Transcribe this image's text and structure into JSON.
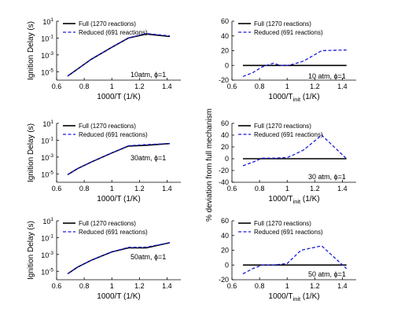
{
  "chart_data": [
    {
      "type": "line",
      "panel": "left-top",
      "ylabel": "Ignition Delay (s)",
      "xlabel": "1000/T (1/K)",
      "annotation": "10atm, ϕ=1",
      "yscale": "log",
      "xlim": [
        0.6,
        1.5
      ],
      "ylim": [
        -6,
        1
      ],
      "xticks": [
        "0.6",
        "0.8",
        "1",
        "1.2",
        "1.4"
      ],
      "yticks": [
        {
          "base": "10",
          "exp": "1",
          "v": 1
        },
        {
          "base": "10",
          "exp": "-1",
          "v": -1
        },
        {
          "base": "10",
          "exp": "-3",
          "v": -3
        },
        {
          "base": "10",
          "exp": "-5",
          "v": -5
        }
      ],
      "legend": "top-left",
      "series": [
        {
          "name": "Full (1270 reactions)",
          "color": "#000000",
          "style": "solid",
          "x": [
            0.68,
            0.75,
            0.85,
            1.0,
            1.12,
            1.25,
            1.42
          ],
          "y": [
            "3e-6",
            "2e-5",
            "3e-4",
            "8e-3",
            "0.1",
            "0.3",
            "0.15"
          ]
        },
        {
          "name": "Reduced (691 reactions)",
          "color": "#1a1adb",
          "style": "dashed",
          "x": [
            0.68,
            0.75,
            0.85,
            1.0,
            1.12,
            1.25,
            1.42
          ],
          "y": [
            "3e-6",
            "2e-5",
            "3e-4",
            "8e-3",
            "0.1",
            "0.35",
            "0.18"
          ]
        }
      ]
    },
    {
      "type": "line",
      "panel": "right-top",
      "xlabel_main": "1000/T",
      "xlabel_sub": "init",
      "xlabel_unit": " (1/K)",
      "annotation": "10 atm, ϕ=1",
      "xlim": [
        0.6,
        1.5
      ],
      "ylim": [
        -20,
        60
      ],
      "xticks": [
        "0.6",
        "0.8",
        "1",
        "1.2",
        "1.4"
      ],
      "yticks": [
        60,
        40,
        20,
        0,
        -20
      ],
      "legend": "top-left",
      "series": [
        {
          "name": "Full (1270 reactions)",
          "color": "#000000",
          "style": "solid",
          "x": [
            0.68,
            1.43
          ],
          "y": [
            0,
            0
          ]
        },
        {
          "name": "Reduced (691 reactions)",
          "color": "#1a1adb",
          "style": "dashed",
          "x": [
            0.68,
            0.75,
            0.82,
            0.9,
            0.95,
            1.0,
            1.05,
            1.12,
            1.25,
            1.43
          ],
          "y": [
            -15,
            -10,
            -2,
            3,
            0,
            0,
            2,
            6,
            20,
            21
          ]
        }
      ]
    },
    {
      "type": "line",
      "panel": "left-middle",
      "ylabel": "Ignition Delay (s)",
      "xlabel": "1000/T (1/K)",
      "annotation": "30atm, ϕ=1",
      "yscale": "log",
      "xlim": [
        0.6,
        1.5
      ],
      "ylim": [
        -6,
        1
      ],
      "xticks": [
        "0.6",
        "0.8",
        "1",
        "1.2",
        "1.4"
      ],
      "yticks": [
        {
          "base": "10",
          "exp": "1",
          "v": 1
        },
        {
          "base": "10",
          "exp": "-1",
          "v": -1
        },
        {
          "base": "10",
          "exp": "-3",
          "v": -3
        },
        {
          "base": "10",
          "exp": "-5",
          "v": -5
        }
      ],
      "legend": "top-left",
      "series": [
        {
          "name": "Full (1270 reactions)",
          "color": "#000000",
          "style": "solid",
          "x": [
            0.68,
            0.75,
            0.85,
            1.0,
            1.12,
            1.25,
            1.42
          ],
          "y": [
            "8e-6",
            "4e-5",
            "2.5e-4",
            "3e-3",
            "0.02",
            "0.025",
            "0.04"
          ]
        },
        {
          "name": "Reduced (691 reactions)",
          "color": "#1a1adb",
          "style": "dashed",
          "x": [
            0.68,
            0.75,
            0.85,
            1.0,
            1.12,
            1.25,
            1.42
          ],
          "y": [
            "8e-6",
            "4e-5",
            "2.5e-4",
            "3e-3",
            "0.022",
            "0.03",
            "0.04"
          ]
        }
      ]
    },
    {
      "type": "line",
      "panel": "right-middle",
      "ylabel": "% deviation from full mechanism",
      "xlabel_main": "1000/T",
      "xlabel_sub": "init",
      "xlabel_unit": " (1/K)",
      "annotation": "30 atm, ϕ=1",
      "xlim": [
        0.6,
        1.5
      ],
      "ylim": [
        -40,
        60
      ],
      "xticks": [
        "0.6",
        "0.8",
        "1",
        "1.2",
        "1.4"
      ],
      "yticks": [
        60,
        40,
        20,
        0,
        -20,
        -40
      ],
      "legend": "top-left",
      "series": [
        {
          "name": "Full (1270 reactions)",
          "color": "#000000",
          "style": "solid",
          "x": [
            0.68,
            1.43
          ],
          "y": [
            0,
            0
          ]
        },
        {
          "name": "Reduced (691 reactions)",
          "color": "#1a1adb",
          "style": "dashed",
          "x": [
            0.68,
            0.75,
            0.82,
            0.9,
            1.0,
            1.05,
            1.12,
            1.25,
            1.43
          ],
          "y": [
            -12,
            -6,
            1,
            1,
            2,
            7,
            15,
            40,
            0
          ]
        }
      ]
    },
    {
      "type": "line",
      "panel": "left-bottom",
      "ylabel": "Ignition Delay (s)",
      "xlabel": "1000/T (1/K)",
      "annotation": "50atm, ϕ=1",
      "yscale": "log",
      "xlim": [
        0.6,
        1.5
      ],
      "ylim": [
        -6,
        1
      ],
      "xticks": [
        "0.6",
        "0.8",
        "1",
        "1.2",
        "1.4"
      ],
      "yticks": [
        {
          "base": "10",
          "exp": "1",
          "v": 1
        },
        {
          "base": "10",
          "exp": "-1",
          "v": -1
        },
        {
          "base": "10",
          "exp": "-3",
          "v": -3
        },
        {
          "base": "10",
          "exp": "-5",
          "v": -5
        }
      ],
      "legend": "top-left",
      "series": [
        {
          "name": "Full (1270 reactions)",
          "color": "#000000",
          "style": "solid",
          "x": [
            0.68,
            0.75,
            0.85,
            1.0,
            1.12,
            1.25,
            1.42
          ],
          "y": [
            "5e-6",
            "3e-5",
            "2e-4",
            "2e-3",
            "6e-3",
            "6e-3",
            "2.5e-2"
          ]
        },
        {
          "name": "Reduced (691 reactions)",
          "color": "#1a1adb",
          "style": "dashed",
          "x": [
            0.68,
            0.75,
            0.85,
            1.0,
            1.12,
            1.25,
            1.42
          ],
          "y": [
            "5e-6",
            "3e-5",
            "2e-4",
            "2e-3",
            "7e-3",
            "7.5e-3",
            "2.5e-2"
          ]
        }
      ]
    },
    {
      "type": "line",
      "panel": "right-bottom",
      "xlabel_main": "1000/T",
      "xlabel_sub": "init",
      "xlabel_unit": " (1/K)",
      "annotation": "50 atm, ϕ=1",
      "xlim": [
        0.6,
        1.5
      ],
      "ylim": [
        -20,
        60
      ],
      "xticks": [
        "0.6",
        "0.8",
        "1",
        "1.2",
        "1.4"
      ],
      "yticks": [
        60,
        40,
        20,
        0,
        -20
      ],
      "legend": "top-left",
      "series": [
        {
          "name": "Full (1270 reactions)",
          "color": "#000000",
          "style": "solid",
          "x": [
            0.68,
            1.43
          ],
          "y": [
            0,
            0
          ]
        },
        {
          "name": "Reduced (691 reactions)",
          "color": "#1a1adb",
          "style": "dashed",
          "x": [
            0.68,
            0.75,
            0.82,
            0.9,
            1.0,
            1.1,
            1.25,
            1.43
          ],
          "y": [
            -12,
            -5,
            0,
            0,
            2,
            20,
            26,
            -5
          ]
        }
      ]
    }
  ]
}
